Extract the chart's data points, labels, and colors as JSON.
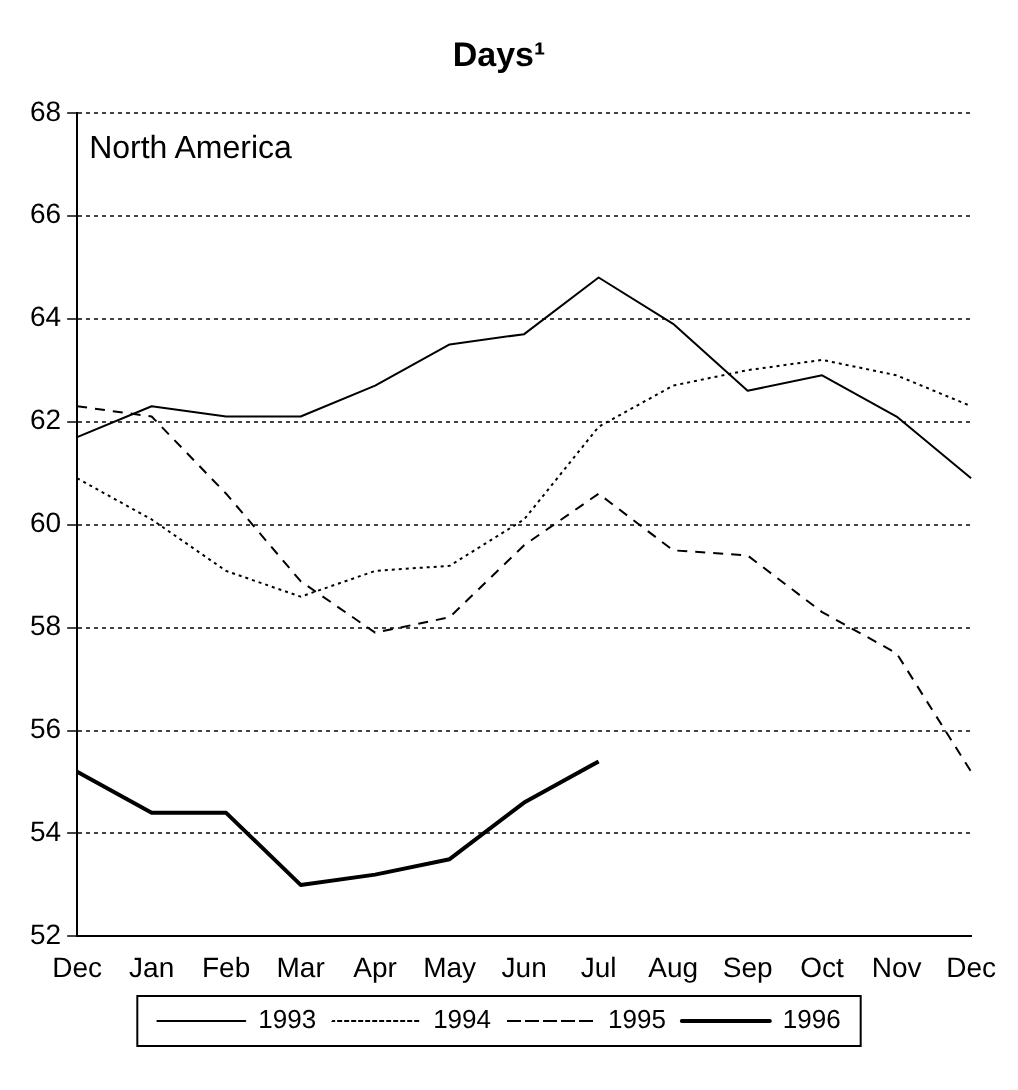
{
  "chart_data": {
    "type": "line",
    "title": "Days¹",
    "annotations": [
      "North America"
    ],
    "categories": [
      "Dec",
      "Jan",
      "Feb",
      "Mar",
      "Apr",
      "May",
      "Jun",
      "Jul",
      "Aug",
      "Sep",
      "Oct",
      "Nov",
      "Dec"
    ],
    "series": [
      {
        "name": "1993",
        "color": "#000000",
        "line_style": "solid",
        "values": [
          61.7,
          62.3,
          62.1,
          62.1,
          62.7,
          63.5,
          63.7,
          64.8,
          63.9,
          62.6,
          62.9,
          62.1,
          60.9
        ]
      },
      {
        "name": "1994",
        "color": "#000000",
        "line_style": "dotted",
        "values": [
          60.9,
          60.1,
          59.1,
          58.6,
          59.1,
          59.2,
          60.1,
          61.9,
          62.7,
          63.0,
          63.2,
          62.9,
          62.3
        ]
      },
      {
        "name": "1995",
        "color": "#000000",
        "line_style": "dashed",
        "values": [
          62.3,
          62.1,
          60.6,
          58.9,
          57.9,
          58.2,
          59.6,
          60.6,
          59.5,
          59.4,
          58.3,
          57.5,
          55.2
        ]
      },
      {
        "name": "1996",
        "color": "#000000",
        "line_style": "solid",
        "values": [
          55.2,
          54.4,
          54.4,
          53.0,
          53.2,
          53.5,
          54.6,
          55.4,
          null,
          null,
          null,
          null,
          null
        ]
      }
    ],
    "ylim": [
      52,
      68
    ],
    "yticks": [
      52,
      54,
      56,
      58,
      60,
      62,
      64,
      66,
      68
    ],
    "grid": "y",
    "legend": "bottom",
    "marker": "none"
  }
}
